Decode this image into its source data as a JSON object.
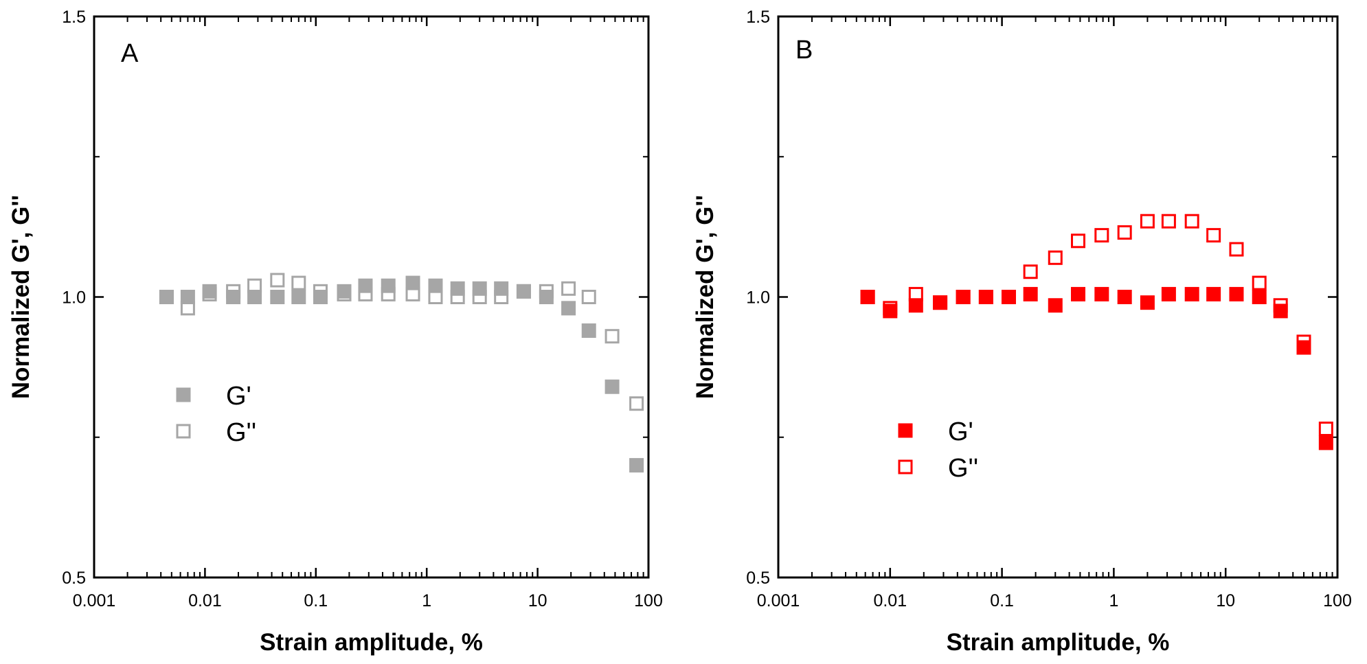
{
  "chart_data": [
    {
      "type": "scatter",
      "panel_label": "A",
      "xlabel": "Strain amplitude, %",
      "ylabel": "Normalized G', G''",
      "xscale": "log",
      "xlim": [
        0.001,
        100
      ],
      "ylim": [
        0.5,
        1.5
      ],
      "x_ticks": [
        "0.001",
        "0.01",
        "0.1",
        "1",
        "10",
        "100"
      ],
      "y_ticks": [
        "0.5",
        "1.0",
        "1.5"
      ],
      "legend_position": "lower-left",
      "series": [
        {
          "name": "G'",
          "marker": "filled-square",
          "color": "#a6a6a6",
          "x": [
            0.0045,
            0.007,
            0.011,
            0.018,
            0.028,
            0.045,
            0.07,
            0.11,
            0.18,
            0.28,
            0.45,
            0.75,
            1.2,
            1.9,
            3.0,
            4.7,
            7.5,
            12,
            19,
            29,
            47,
            78
          ],
          "y": [
            1.0,
            1.0,
            1.01,
            1.0,
            1.0,
            1.0,
            1.0,
            1.0,
            1.01,
            1.02,
            1.02,
            1.025,
            1.02,
            1.015,
            1.015,
            1.015,
            1.01,
            1.0,
            0.98,
            0.94,
            0.84,
            0.7
          ]
        },
        {
          "name": "G''",
          "marker": "open-square",
          "color": "#a6a6a6",
          "x": [
            0.0045,
            0.007,
            0.011,
            0.018,
            0.028,
            0.045,
            0.07,
            0.11,
            0.18,
            0.28,
            0.45,
            0.75,
            1.2,
            1.9,
            3.0,
            4.7,
            7.5,
            12,
            19,
            29,
            47,
            78
          ],
          "y": [
            1.0,
            0.98,
            1.005,
            1.01,
            1.02,
            1.03,
            1.025,
            1.01,
            1.005,
            1.005,
            1.005,
            1.005,
            1.0,
            1.0,
            1.0,
            1.0,
            1.01,
            1.01,
            1.015,
            1.0,
            0.93,
            0.81
          ]
        }
      ]
    },
    {
      "type": "scatter",
      "panel_label": "B",
      "xlabel": "Strain amplitude, %",
      "ylabel": "Normalized G', G''",
      "xscale": "log",
      "xlim": [
        0.001,
        100
      ],
      "ylim": [
        0.5,
        1.5
      ],
      "x_ticks": [
        "0.001",
        "0.01",
        "0.1",
        "1",
        "10",
        "100"
      ],
      "y_ticks": [
        "0.5",
        "1.0",
        "1.5"
      ],
      "legend_position": "lower-left",
      "series": [
        {
          "name": "G'",
          "marker": "filled-square",
          "color": "#ff0000",
          "x": [
            0.0063,
            0.01,
            0.017,
            0.028,
            0.045,
            0.072,
            0.115,
            0.18,
            0.3,
            0.48,
            0.78,
            1.25,
            2.0,
            3.1,
            5.0,
            7.8,
            12.5,
            20,
            31,
            50,
            79
          ],
          "y": [
            1.0,
            0.975,
            0.985,
            0.99,
            1.0,
            1.0,
            1.0,
            1.005,
            0.985,
            1.005,
            1.005,
            1.0,
            0.99,
            1.005,
            1.005,
            1.005,
            1.005,
            1.0,
            0.975,
            0.91,
            0.74
          ]
        },
        {
          "name": "G''",
          "marker": "open-square",
          "color": "#ff0000",
          "x": [
            0.0063,
            0.01,
            0.017,
            0.028,
            0.045,
            0.072,
            0.115,
            0.18,
            0.3,
            0.48,
            0.78,
            1.25,
            2.0,
            3.1,
            5.0,
            7.8,
            12.5,
            20,
            31,
            50,
            79
          ],
          "y": [
            1.0,
            0.98,
            1.005,
            0.99,
            1.0,
            1.0,
            1.0,
            1.045,
            1.07,
            1.1,
            1.11,
            1.115,
            1.135,
            1.135,
            1.135,
            1.11,
            1.085,
            1.025,
            0.985,
            0.92,
            0.765
          ]
        }
      ]
    }
  ]
}
